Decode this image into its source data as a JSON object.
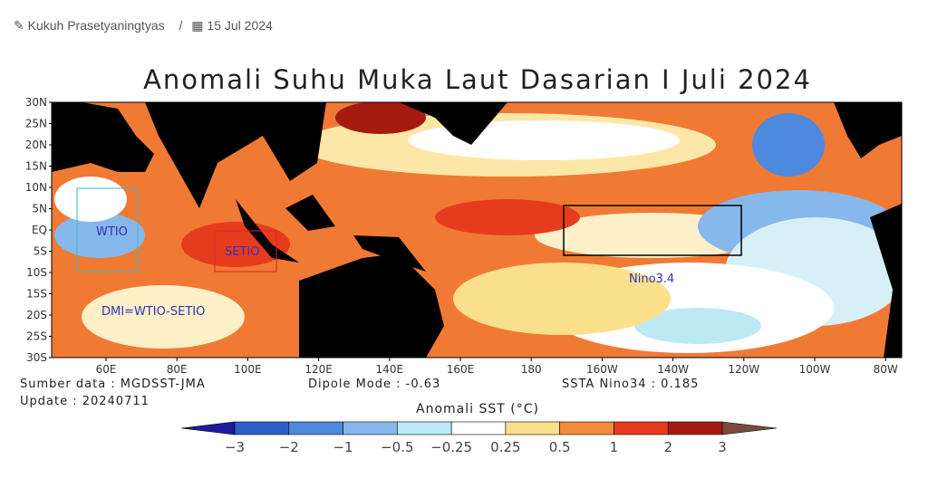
{
  "byline": {
    "author": "Kukuh Prasetyaningtyas",
    "separator": "/",
    "date": "15 Jul 2024"
  },
  "map": {
    "title": "Anomali Suhu Muka Laut Dasarian I Juli 2024",
    "lat_labels": [
      "30N",
      "25N",
      "20N",
      "15N",
      "10N",
      "5N",
      "EQ",
      "5S",
      "10S",
      "15S",
      "20S",
      "25S",
      "30S"
    ],
    "lon_labels": [
      "60E",
      "80E",
      "100E",
      "120E",
      "140E",
      "160E",
      "180",
      "160W",
      "140W",
      "120W",
      "100W",
      "80W"
    ],
    "regions": {
      "wtio": "WTIO",
      "setio": "SETIO",
      "nino": "Nino3.4"
    },
    "formula": "DMI=WTIO-SETIO",
    "source": "Sumber data : MGDSST-JMA",
    "update": "Update : 20240711",
    "dipole": "Dipole Mode : -0.63",
    "ssta": "SSTA Nino34 : 0.185",
    "colorbar": {
      "title": "Anomali SST (°C)",
      "labels": [
        "−3",
        "−2",
        "−1",
        "−0.5",
        "−0.25",
        "0.25",
        "0.5",
        "1",
        "2",
        "3"
      ],
      "colors": [
        "#1c1c9c",
        "#2d5fc9",
        "#4d89dd",
        "#86b8ec",
        "#bde9f5",
        "#ffffff",
        "#fbe08c",
        "#f28a3b",
        "#e63c1d",
        "#a61b10",
        "#7a4b3d"
      ]
    }
  }
}
